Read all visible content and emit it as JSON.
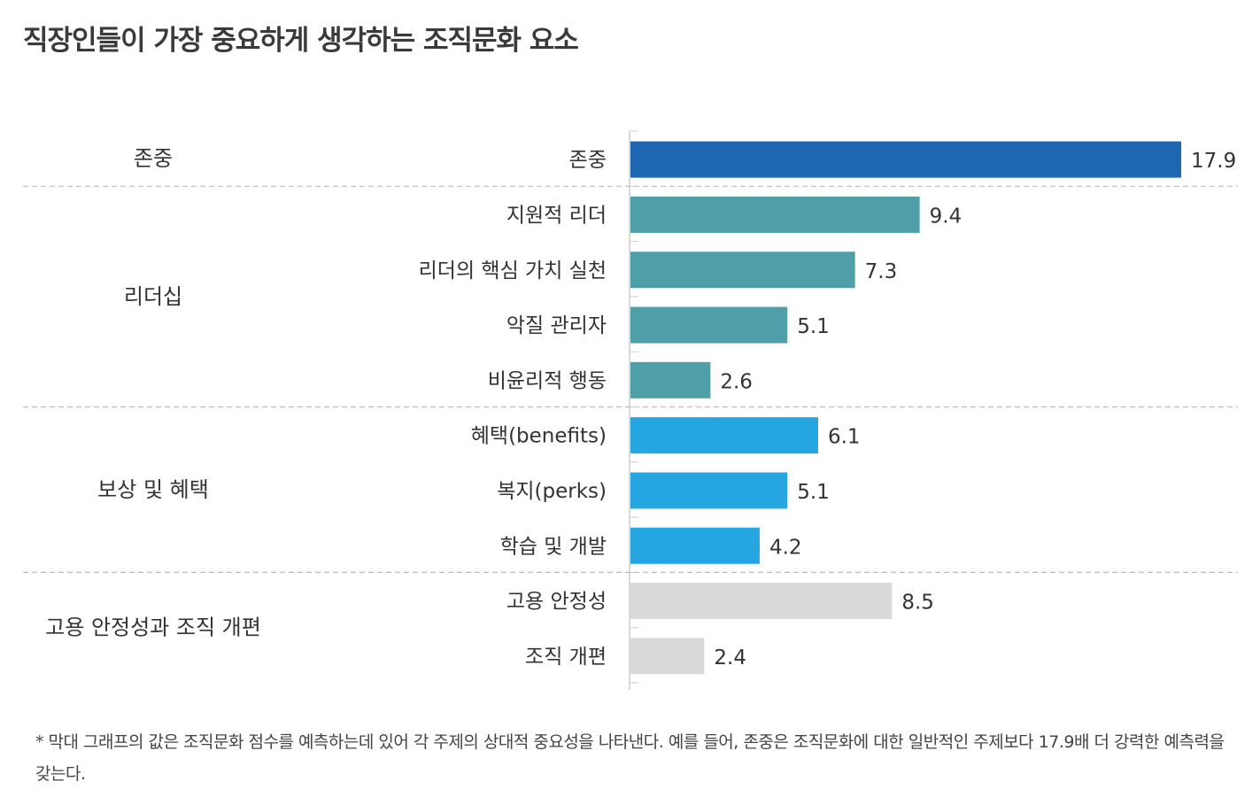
{
  "title": "직장인들이 가장 중요하게 생각하는 조직문화 요소",
  "footnote": "* 막대 그래프의 값은 조직문화 점수를 예측하는데 있어 각 주제의 상대적 중요성을 나타낸다. 예를 들어, 존중은 조직문화에 대한 일반적인 주제보다 17.9배 더 강력한 예측력을 갖는다.",
  "colors": {
    "respect": "#1e66b0",
    "leadership": "#4e9fa8",
    "benefits": "#26a6e0",
    "stability": "#d9d9d9",
    "divider": "#bbbbbb",
    "axis": "#cccccc",
    "text": "#333333"
  },
  "chart_data": {
    "type": "bar",
    "orientation": "horizontal",
    "xlim": [
      0,
      20
    ],
    "grid": false,
    "groups": [
      {
        "name": "존중",
        "color_key": "respect",
        "items": [
          {
            "label": "존중",
            "value": 17.9
          }
        ]
      },
      {
        "name": "리더십",
        "color_key": "leadership",
        "items": [
          {
            "label": "지원적 리더",
            "value": 9.4
          },
          {
            "label": "리더의 핵심 가치 실천",
            "value": 7.3
          },
          {
            "label": "악질 관리자",
            "value": 5.1
          },
          {
            "label": "비윤리적 행동",
            "value": 2.6
          }
        ]
      },
      {
        "name": "보상 및 혜택",
        "color_key": "benefits",
        "items": [
          {
            "label": "혜택(benefits)",
            "value": 6.1
          },
          {
            "label": "복지(perks)",
            "value": 5.1
          },
          {
            "label": "학습 및 개발",
            "value": 4.2
          }
        ]
      },
      {
        "name": "고용 안정성과 조직 개편",
        "color_key": "stability",
        "items": [
          {
            "label": "고용 안정성",
            "value": 8.5
          },
          {
            "label": "조직 개편",
            "value": 2.4
          }
        ]
      }
    ]
  }
}
